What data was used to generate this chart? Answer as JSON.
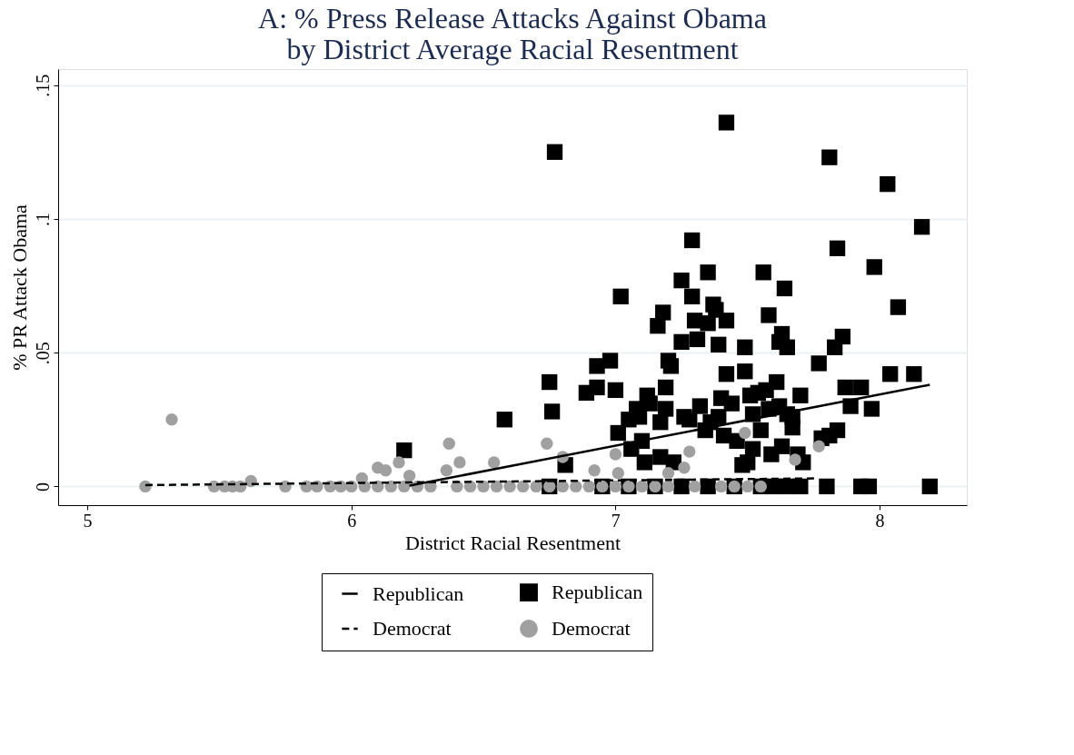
{
  "chart_data": {
    "type": "scatter",
    "title": "A: % Press Release Attacks Against Obama\nby District Average Racial Resentment",
    "xlabel": "District Racial Resentment",
    "ylabel": "% PR Attack Obama",
    "xlim": [
      4.89,
      8.33
    ],
    "xticks": [
      5,
      6,
      7,
      8
    ],
    "ylim": [
      -0.007,
      0.156
    ],
    "yticks": [
      {
        "value": 0,
        "label": "0"
      },
      {
        "value": 0.05,
        "label": ".05"
      },
      {
        "value": 0.1,
        "label": ".1"
      },
      {
        "value": 0.15,
        "label": ".15"
      }
    ],
    "grid": "y",
    "legend": "bottom",
    "series": [
      {
        "name": "Republican",
        "type": "line",
        "line_style": "solid",
        "color": "#000000",
        "x": [
          6.22,
          8.19
        ],
        "values": [
          0.0003,
          0.038
        ]
      },
      {
        "name": "Republican",
        "type": "scatter",
        "marker": "square",
        "color": "#000000",
        "x": [
          6.2,
          6.58,
          6.75,
          6.76,
          6.77,
          6.81,
          6.89,
          6.93,
          6.93,
          6.98,
          7.0,
          7.01,
          7.02,
          7.05,
          7.06,
          7.08,
          7.09,
          7.1,
          7.11,
          7.12,
          7.13,
          7.16,
          7.17,
          7.17,
          7.18,
          7.19,
          7.2,
          7.21,
          7.19,
          7.22,
          7.25,
          7.25,
          7.26,
          7.28,
          7.29,
          7.29,
          7.3,
          7.31,
          7.32,
          7.34,
          7.35,
          7.35,
          7.36,
          7.37,
          7.38,
          7.39,
          7.39,
          7.4,
          7.41,
          7.42,
          7.42,
          7.42,
          7.44,
          7.46,
          7.48,
          7.49,
          7.49,
          7.5,
          7.51,
          7.52,
          7.52,
          7.54,
          7.55,
          7.56,
          7.57,
          7.58,
          7.58,
          7.59,
          7.61,
          7.62,
          7.62,
          7.63,
          7.63,
          7.64,
          7.65,
          7.65,
          7.67,
          7.67,
          7.69,
          7.7,
          7.71,
          7.77,
          7.78,
          7.81,
          7.84,
          7.83,
          7.84,
          7.86,
          7.87,
          7.89,
          7.93,
          7.97,
          7.98,
          8.04,
          8.03,
          8.07,
          8.13,
          8.16,
          7.81,
          6.75,
          6.95,
          7.05,
          7.15,
          7.25,
          7.35,
          7.45,
          7.55,
          7.6,
          7.65,
          7.7,
          7.8,
          7.93,
          7.96,
          8.19
        ],
        "values": [
          0.0135,
          0.025,
          0.039,
          0.028,
          0.125,
          0.008,
          0.035,
          0.045,
          0.037,
          0.047,
          0.036,
          0.02,
          0.071,
          0.025,
          0.014,
          0.029,
          0.026,
          0.017,
          0.009,
          0.034,
          0.031,
          0.06,
          0.024,
          0.011,
          0.065,
          0.037,
          0.047,
          0.045,
          0.029,
          0.009,
          0.077,
          0.054,
          0.026,
          0.025,
          0.092,
          0.071,
          0.062,
          0.055,
          0.03,
          0.021,
          0.08,
          0.061,
          0.024,
          0.068,
          0.066,
          0.053,
          0.026,
          0.033,
          0.019,
          0.062,
          0.136,
          0.042,
          0.031,
          0.017,
          0.008,
          0.043,
          0.052,
          0.009,
          0.034,
          0.027,
          0.014,
          0.035,
          0.021,
          0.08,
          0.036,
          0.029,
          0.064,
          0.012,
          0.039,
          0.03,
          0.054,
          0.057,
          0.015,
          0.074,
          0.027,
          0.052,
          0.026,
          0.022,
          0.012,
          0.034,
          0.009,
          0.046,
          0.018,
          0.019,
          0.021,
          0.052,
          0.089,
          0.056,
          0.037,
          0.03,
          0.037,
          0.029,
          0.082,
          0.042,
          0.113,
          0.067,
          0.042,
          0.097,
          0.123,
          0,
          0,
          0,
          0,
          0,
          0,
          0,
          0,
          0,
          0,
          0,
          0,
          0,
          0,
          0
        ]
      },
      {
        "name": "Democrat",
        "type": "line",
        "line_style": "dashed",
        "color": "#000000",
        "x": [
          5.22,
          7.76
        ],
        "values": [
          0.0005,
          0.003
        ]
      },
      {
        "name": "Democrat",
        "type": "scatter",
        "marker": "circle",
        "color": "#a0a0a0",
        "x": [
          5.22,
          5.32,
          5.48,
          5.52,
          5.55,
          5.58,
          5.62,
          5.75,
          5.83,
          5.87,
          5.92,
          5.96,
          6.0,
          6.04,
          6.1,
          6.13,
          6.18,
          6.22,
          6.37,
          6.36,
          6.41,
          6.54,
          6.74,
          6.8,
          6.92,
          7.0,
          7.01,
          7.2,
          7.26,
          7.28,
          7.49,
          7.68,
          7.77,
          6.05,
          6.1,
          6.15,
          6.2,
          6.25,
          6.3,
          6.4,
          6.45,
          6.5,
          6.55,
          6.6,
          6.65,
          6.7,
          6.75,
          6.8,
          6.85,
          6.9,
          6.95,
          7.0,
          7.05,
          7.1,
          7.15,
          7.2,
          7.3,
          7.4,
          7.45,
          7.5,
          7.55
        ],
        "values": [
          0,
          0.025,
          0,
          0,
          0,
          0,
          0.002,
          0,
          0,
          0,
          0,
          0,
          0,
          0.003,
          0.007,
          0.006,
          0.009,
          0.004,
          0.016,
          0.006,
          0.009,
          0.009,
          0.016,
          0.011,
          0.006,
          0.012,
          0.005,
          0.005,
          0.007,
          0.013,
          0.02,
          0.01,
          0.015,
          0,
          0,
          0,
          0,
          0,
          0,
          0,
          0,
          0,
          0,
          0,
          0,
          0,
          0,
          0,
          0,
          0,
          0,
          0,
          0,
          0,
          0,
          0,
          0,
          0,
          0,
          0,
          0
        ]
      }
    ]
  }
}
